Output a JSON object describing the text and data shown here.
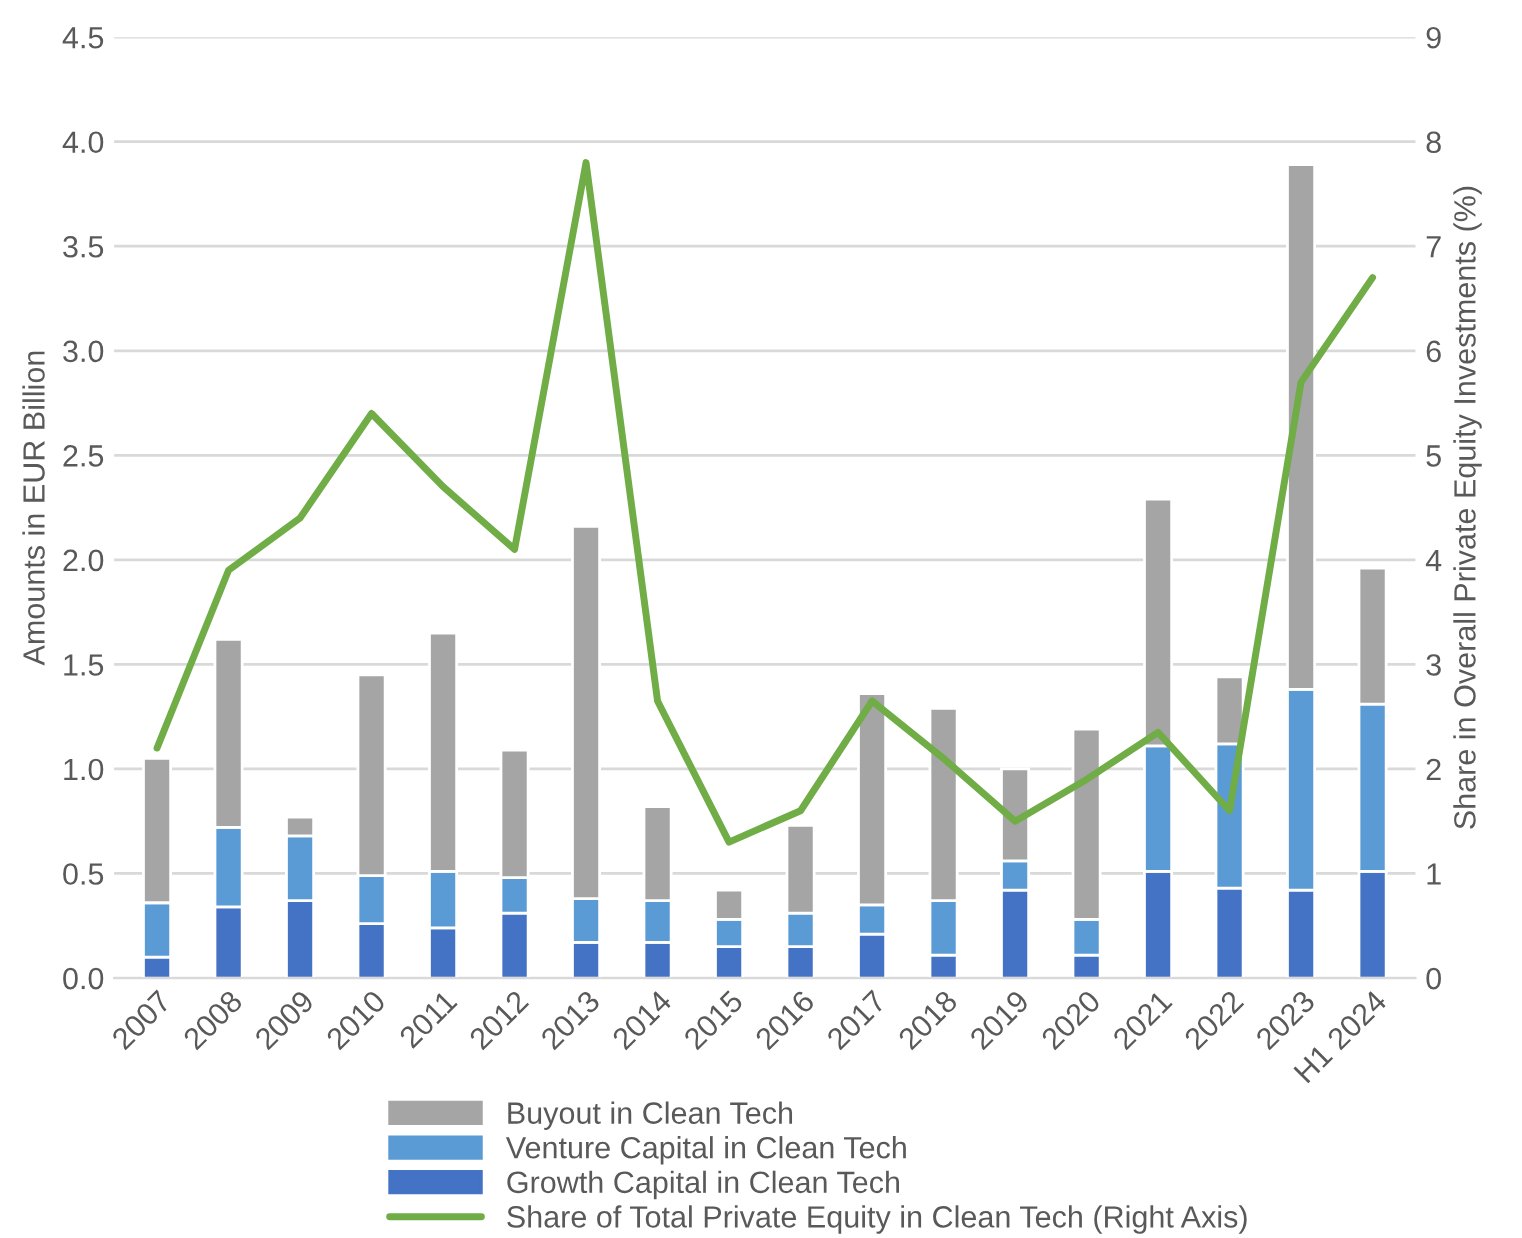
{
  "chart_data": {
    "type": "bar",
    "stacked": true,
    "ylabel": "Amounts in EUR Billion",
    "y2label": "Share in Overall Private Equity Investments (%)",
    "categories": [
      "2007",
      "2008",
      "2009",
      "2010",
      "2011",
      "2012",
      "2013",
      "2014",
      "2015",
      "2016",
      "2017",
      "2018",
      "2019",
      "2020",
      "2021",
      "2022",
      "2023",
      "H1 2024"
    ],
    "series": [
      {
        "name": "Growth Capital in Clean Tech",
        "color": "#4472c4",
        "values": [
          0.1,
          0.34,
          0.37,
          0.26,
          0.24,
          0.31,
          0.17,
          0.17,
          0.15,
          0.15,
          0.21,
          0.11,
          0.42,
          0.11,
          0.51,
          0.43,
          0.42,
          0.51
        ]
      },
      {
        "name": "Venture Capital in Clean Tech",
        "color": "#5b9bd5",
        "values": [
          0.26,
          0.38,
          0.31,
          0.23,
          0.27,
          0.17,
          0.21,
          0.2,
          0.13,
          0.16,
          0.14,
          0.26,
          0.14,
          0.17,
          0.6,
          0.69,
          0.96,
          0.8
        ]
      },
      {
        "name": "Buyout in Clean Tech",
        "color": "#a5a5a5",
        "values": [
          0.69,
          0.9,
          0.09,
          0.96,
          1.14,
          0.61,
          1.78,
          0.45,
          0.14,
          0.42,
          1.01,
          0.92,
          0.44,
          0.91,
          1.18,
          0.32,
          2.51,
          0.65
        ]
      },
      {
        "name": "Share of Total Private Equity in Clean Tech (Right Axis)",
        "type": "line",
        "axis": "y2",
        "color": "#70ad47",
        "values": [
          2.2,
          3.9,
          4.4,
          5.4,
          4.7,
          4.1,
          7.8,
          2.65,
          1.3,
          1.6,
          2.65,
          2.1,
          1.5,
          1.9,
          2.35,
          1.6,
          5.7,
          6.7
        ]
      }
    ],
    "ylim": [
      0,
      4.5
    ],
    "yticks": [
      {
        "value": 0,
        "label": "0.0"
      },
      {
        "value": 0.5,
        "label": "0.5"
      },
      {
        "value": 1,
        "label": "1.0"
      },
      {
        "value": 1.5,
        "label": "1.5"
      },
      {
        "value": 2,
        "label": "2.0"
      },
      {
        "value": 2.5,
        "label": "2.5"
      },
      {
        "value": 3,
        "label": "3.0"
      },
      {
        "value": 3.5,
        "label": "3.5"
      },
      {
        "value": 4,
        "label": "4.0"
      },
      {
        "value": 4.5,
        "label": "4.5"
      }
    ],
    "y2lim": [
      0,
      9
    ],
    "y2ticks": [
      0,
      1,
      2,
      3,
      4,
      5,
      6,
      7,
      8,
      9
    ],
    "grid": "y",
    "legend": "bottom"
  }
}
